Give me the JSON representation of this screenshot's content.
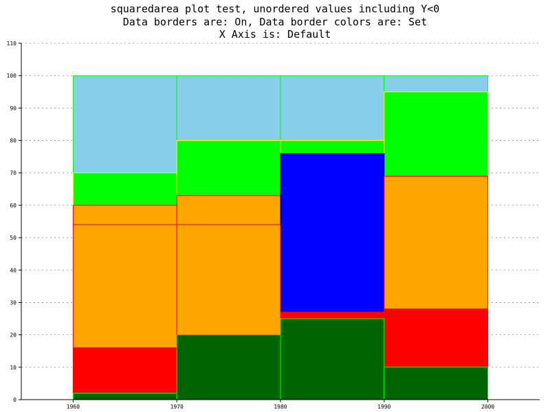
{
  "chart_data": {
    "type": "area",
    "subtype": "squared-stacked",
    "title_lines": [
      "squaredarea plot test, unordered values including Y<0",
      "Data borders are: On, Data border colors are: Set",
      "X Axis is: Default"
    ],
    "xlabel": "",
    "ylabel": "",
    "x_ticks": [
      "1960",
      "1970",
      "1980",
      "1990",
      "2000"
    ],
    "x_values": [
      1960,
      1970,
      1980,
      1990,
      2000
    ],
    "xlim": [
      1955,
      2005
    ],
    "ylim": [
      0,
      110
    ],
    "y_ticks": [
      "0",
      "10",
      "20",
      "30",
      "40",
      "50",
      "60",
      "70",
      "80",
      "90",
      "100",
      "110"
    ],
    "grid": "horizontal-dashed",
    "legend": "none",
    "series": [
      {
        "fill": "#006400",
        "border": "#00ff00",
        "cumulative": [
          2,
          20,
          25,
          10
        ]
      },
      {
        "fill": "#ff0000",
        "border": "#ff0000",
        "cumulative": [
          16,
          20,
          27,
          28
        ]
      },
      {
        "fill": "#ffa500",
        "border": "#ff0000",
        "cumulative": [
          54,
          54,
          27,
          69
        ]
      },
      {
        "fill": "#0000ff",
        "border": "#000080",
        "cumulative": [
          54,
          54,
          76,
          69
        ]
      },
      {
        "fill": "#ffa500",
        "border": "#ff0000",
        "cumulative": [
          60,
          63,
          76,
          69
        ]
      },
      {
        "fill": "#00ff00",
        "border": "#ffff00",
        "cumulative": [
          70,
          80,
          80,
          95
        ]
      },
      {
        "fill": "#87ceeb",
        "border": "#00ff00",
        "cumulative": [
          100,
          100,
          100,
          100
        ]
      }
    ]
  }
}
